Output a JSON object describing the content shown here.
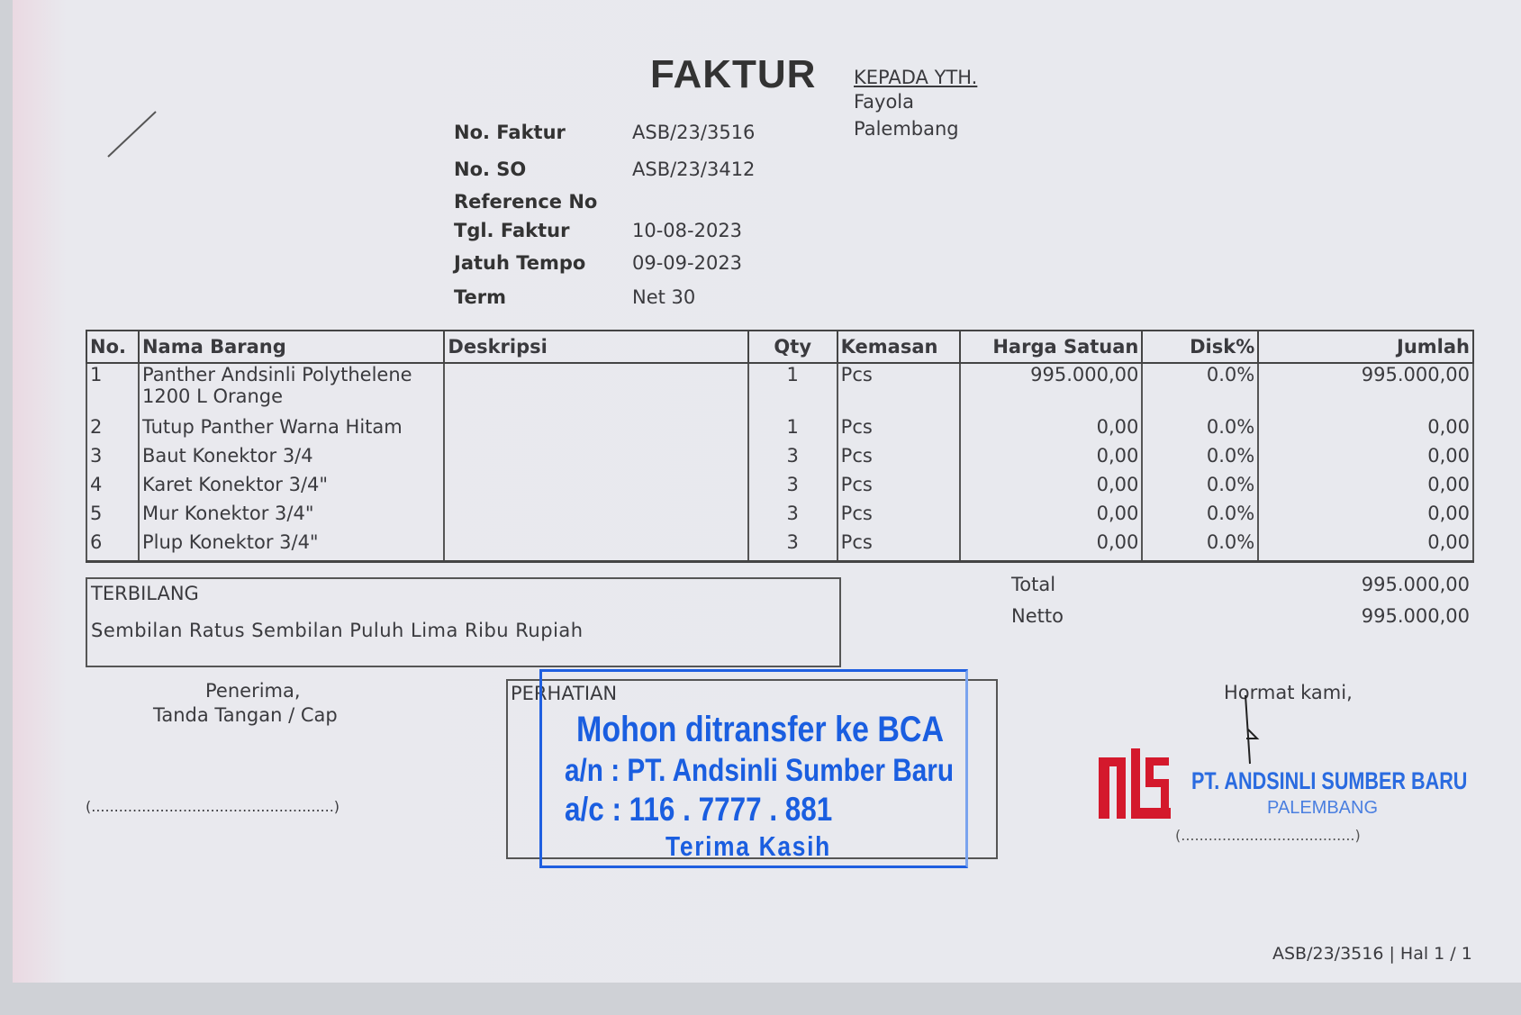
{
  "title": "FAKTUR",
  "recipient": {
    "heading": "KEPADA YTH.",
    "name": "Fayola",
    "city": "Palembang"
  },
  "meta": [
    {
      "label": "No. Faktur",
      "value": "ASB/23/3516"
    },
    {
      "label": "No. SO",
      "value": "ASB/23/3412"
    },
    {
      "label": "Reference No",
      "value": ""
    },
    {
      "label": "Tgl. Faktur",
      "value": "10-08-2023"
    },
    {
      "label": "Jatuh Tempo",
      "value": "09-09-2023"
    },
    {
      "label": "Term",
      "value": "Net 30"
    }
  ],
  "table": {
    "headers": [
      "No.",
      "Nama Barang",
      "Deskripsi",
      "Qty",
      "Kemasan",
      "Harga Satuan",
      "Disk%",
      "Jumlah"
    ],
    "rows": [
      [
        "1",
        "Panther Andsinli Polythelene 1200 L Orange",
        "",
        "1",
        "Pcs",
        "995.000,00",
        "0.0%",
        "995.000,00"
      ],
      [
        "2",
        "Tutup Panther Warna Hitam",
        "",
        "1",
        "Pcs",
        "0,00",
        "0.0%",
        "0,00"
      ],
      [
        "3",
        "Baut Konektor 3/4",
        "",
        "3",
        "Pcs",
        "0,00",
        "0.0%",
        "0,00"
      ],
      [
        "4",
        "Karet Konektor 3/4\"",
        "",
        "3",
        "Pcs",
        "0,00",
        "0.0%",
        "0,00"
      ],
      [
        "5",
        "Mur Konektor 3/4\"",
        "",
        "3",
        "Pcs",
        "0,00",
        "0.0%",
        "0,00"
      ],
      [
        "6",
        "Plup Konektor 3/4\"",
        "",
        "3",
        "Pcs",
        "0,00",
        "0.0%",
        "0,00"
      ]
    ]
  },
  "terbilang": {
    "label": "TERBILANG",
    "text": "Sembilan Ratus Sembilan Puluh Lima Ribu Rupiah"
  },
  "totals": {
    "total_label": "Total",
    "total": "995.000,00",
    "netto_label": "Netto",
    "netto": "995.000,00"
  },
  "receiver": {
    "line1": "Penerima,",
    "line2": "Tanda Tangan / Cap",
    "sign": "(.....................................................)"
  },
  "perhatian": "PERHATIAN",
  "stamp": {
    "line1": "Mohon ditransfer ke BCA",
    "line2": "a/n : PT. Andsinli Sumber Baru",
    "line3": "a/c : 116 . 7777 . 881",
    "line4": "Terima Kasih"
  },
  "sender": {
    "greeting": "Hormat kami,",
    "company": "PT. ANDSINLI SUMBER BARU",
    "city": "PALEMBANG",
    "sign": "(......................................)",
    "logo": "ASB"
  },
  "footer": "ASB/23/3516 | Hal 1 / 1",
  "colors": {
    "stamp": "#1a5ee0",
    "logo": "#d4192c"
  }
}
